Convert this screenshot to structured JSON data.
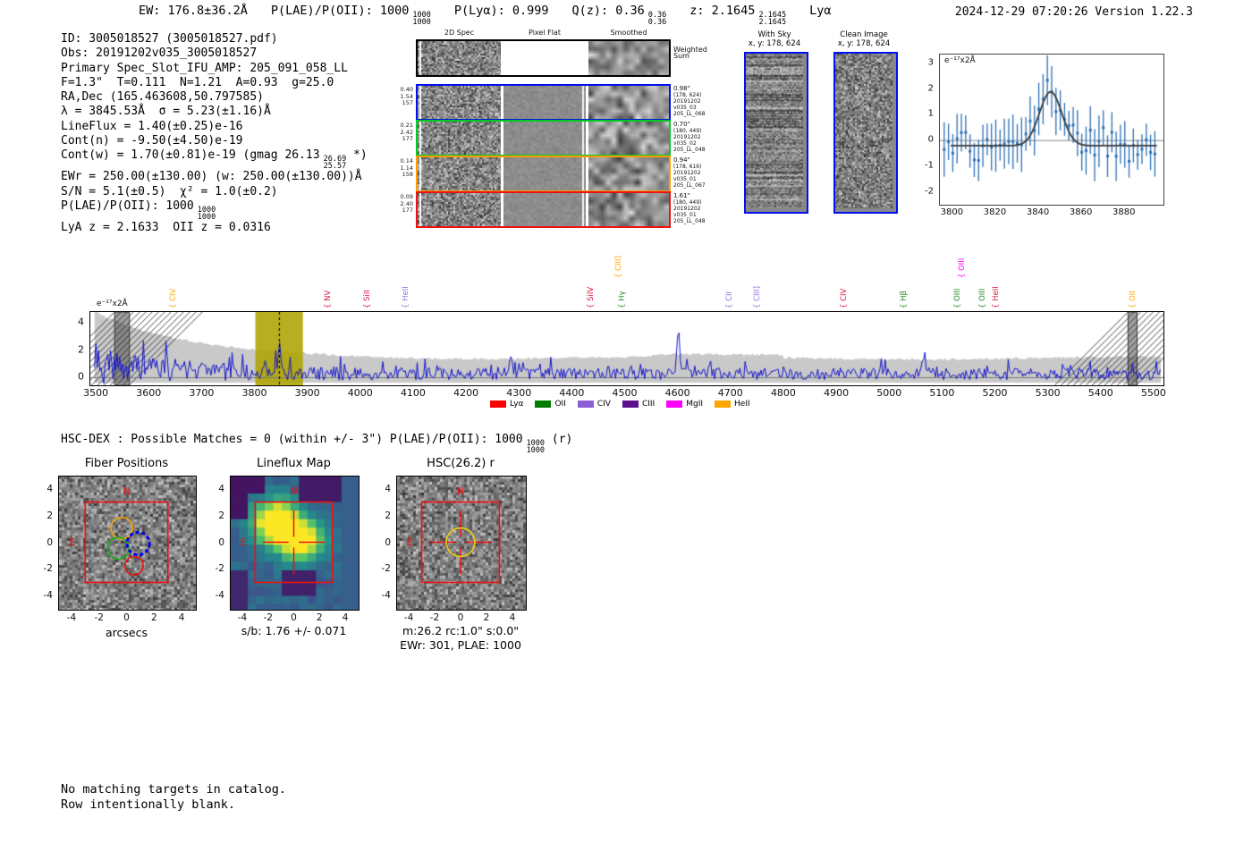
{
  "header": {
    "tokens": [
      {
        "text": "EW: 176.8±36.2Å"
      },
      {
        "text": "P(LAE)/P(OII): 1000",
        "sup": "1000",
        "sub": "1000"
      },
      {
        "text": "P(Lyα): 0.999"
      },
      {
        "text": "Q(z): 0.36",
        "sup": "0.36",
        "sub": "0.36"
      },
      {
        "text": "z: 2.1645",
        "sup": "2.1645",
        "sub": "2.1645"
      },
      {
        "text": "Lyα"
      }
    ],
    "datetime_version": "2024-12-29 07:20:26  Version 1.22.3"
  },
  "info": {
    "lines": [
      {
        "text": "ID: 3005018527 (3005018527.pdf)"
      },
      {
        "text": "Obs: 20191202v035_3005018527"
      },
      {
        "text": "Primary Spec_Slot_IFU_AMP: 205_091_058_LL"
      },
      {
        "text": "F=1.3\"  T=0.111  N=1.21  A=0.93  g=25.0"
      },
      {
        "text": "RA,Dec (165.463608,50.797585)"
      },
      {
        "text": "λ = 3845.53Å  σ = 5.23(±1.16)Å"
      },
      {
        "text": "LineFlux = 1.40(±0.25)e-16"
      },
      {
        "text": "Cont(n) = -9.50(±4.50)e-19"
      },
      {
        "text": "Cont(w) = 1.70(±0.81)e-19 (gmag 26.13",
        "sup": "26.69",
        "sub": "25.57",
        "post": " *)"
      },
      {
        "text": "EWr = 250.00(±130.00) (w: 250.00(±130.00))Å"
      },
      {
        "text": "S/N = 5.1(±0.5)  χ² = 1.0(±0.2)"
      },
      {
        "text": "P(LAE)/P(OII): 1000",
        "sup": "1000",
        "sub": "1000"
      },
      {
        "text": "LyA z = 2.1633  OII z = 0.0316"
      }
    ]
  },
  "twod": {
    "column_titles": [
      "2D Spec",
      "Pixel Flat",
      "Smoothed"
    ],
    "rows": [
      {
        "border": "#000000",
        "left": [],
        "right": [
          "Weighted",
          "Sum"
        ]
      },
      {
        "border": "#0010ee",
        "left": [
          "0.40",
          "1.54",
          "157"
        ],
        "right": [
          "0.98\"",
          "(178, 624)",
          "20191202",
          "v035_03",
          "205_LL_068"
        ]
      },
      {
        "border": "#00cc22",
        "left": [
          "0.21",
          "2.42",
          "177"
        ],
        "right": [
          "0.70\"",
          "(180, 449)",
          "20191202",
          "v035_02",
          "205_LL_048"
        ]
      },
      {
        "border": "#ff9d00",
        "left": [
          "0.14",
          "1.14",
          "158"
        ],
        "right": [
          "0.94\"",
          "(178, 616)",
          "20191202",
          "v035_01",
          "205_LL_067"
        ]
      },
      {
        "border": "#ee1111",
        "left": [
          "0.09",
          "2.40",
          "177"
        ],
        "right": [
          "1.61\"",
          "(180, 449)",
          "20191202",
          "v035_01",
          "205_LL_048"
        ]
      }
    ]
  },
  "cutouts": [
    {
      "title": "With Sky",
      "xy": "x, y: 178, 624"
    },
    {
      "title": "Clean Image",
      "xy": "x, y: 178, 624"
    }
  ],
  "hscdex": {
    "text": "HSC-DEX : Possible Matches = 0 (within +/- 3\")  P(LAE)/P(OII): 1000",
    "sup": "1000",
    "sub": "1000",
    "post": " (r)"
  },
  "footer": {
    "lines": [
      "No matching targets in catalog.",
      "Row intentionally blank."
    ]
  },
  "chart_data": [
    {
      "id": "zoom_spectrum",
      "type": "scatter",
      "annotation": "e⁻¹⁷x2Å",
      "xticks": [
        3800,
        3820,
        3840,
        3860,
        3880
      ],
      "yticks": [
        3,
        2,
        1,
        0,
        -1,
        -2
      ],
      "xlim": [
        3794,
        3898
      ],
      "ylim": [
        -2.5,
        3.35
      ],
      "marker_color": "#2d6fb5",
      "fit_color": "#3a3a3a",
      "fit": {
        "shape": "gaussian",
        "center": 3845.5,
        "sigma": 5.2,
        "amplitude": 2.1,
        "baseline": -0.2
      },
      "description": "Blue errorbar points about 0 with Gaussian fit peaking ~1.9 at 3845"
    },
    {
      "id": "full_spectrum",
      "type": "line",
      "annotation": "e⁻¹⁷x2Å",
      "xticks": [
        3500,
        3600,
        3700,
        3800,
        3900,
        4000,
        4100,
        4200,
        4300,
        4400,
        4500,
        4600,
        4700,
        4800,
        4900,
        5000,
        5100,
        5200,
        5300,
        5400,
        5500
      ],
      "yticks": [
        0,
        2,
        4
      ],
      "xlim": [
        3488,
        5517
      ],
      "ylim": [
        -0.55,
        4.75
      ],
      "spectrum_color": "#1414cc",
      "noise_envelope_color": "#c9c9c9",
      "emission_band": {
        "x0": 3800,
        "x1": 3890,
        "color": "rgba(173,164,0,0.88)",
        "line_at": 3845.5
      },
      "masked_bands": [
        [
          3534,
          3562
        ],
        [
          5450,
          5467
        ]
      ],
      "spikes": [
        [
          3845.5,
          1.7
        ],
        [
          4283,
          1.5
        ],
        [
          4600,
          2.7
        ],
        [
          5065,
          1.2
        ]
      ],
      "line_markers": [
        {
          "label": "CIV",
          "x": 3632,
          "color": "#ffa500",
          "elevated": false
        },
        {
          "label": "NV",
          "x": 3924,
          "color": "#dc143c",
          "elevated": false
        },
        {
          "label": "SiII",
          "x": 3999,
          "color": "#dc143c",
          "elevated": false
        },
        {
          "label": "HeII",
          "x": 4071,
          "color": "#9370db",
          "elevated": false
        },
        {
          "label": "SiIV",
          "x": 4421,
          "color": "#dc143c",
          "elevated": false
        },
        {
          "label": "CIII]",
          "x": 4474,
          "color": "#ffa500",
          "elevated": true
        },
        {
          "label": "Hγ",
          "x": 4480,
          "color": "#228b22",
          "elevated": false
        },
        {
          "label": "CII",
          "x": 4683,
          "color": "#9370db",
          "elevated": false
        },
        {
          "label": "CIII]",
          "x": 4736,
          "color": "#9370db",
          "elevated": false
        },
        {
          "label": "CIV",
          "x": 4900,
          "color": "#dc143c",
          "elevated": false
        },
        {
          "label": "Hβ",
          "x": 5013,
          "color": "#228b22",
          "elevated": false
        },
        {
          "label": "OIII",
          "x": 5115,
          "color": "#228b22",
          "elevated": false
        },
        {
          "label": "OIII",
          "x": 5123,
          "color": "#ff00ff",
          "elevated": true
        },
        {
          "label": "OIII",
          "x": 5162,
          "color": "#228b22",
          "elevated": false
        },
        {
          "label": "HeII",
          "x": 5187,
          "color": "#dc143c",
          "elevated": false
        },
        {
          "label": "OII",
          "x": 5446,
          "color": "#ffa500",
          "elevated": false
        }
      ],
      "legend": [
        {
          "label": "Lyα",
          "color": "#ff0000"
        },
        {
          "label": "OII",
          "color": "#007d00"
        },
        {
          "label": "CIV",
          "color": "#8b5fd6"
        },
        {
          "label": "CIII",
          "color": "#5d0f8e"
        },
        {
          "label": "MgII",
          "color": "#ff00ff"
        },
        {
          "label": "HeII",
          "color": "#ffa500"
        }
      ]
    },
    {
      "id": "fiber_positions",
      "type": "image",
      "title": "Fiber Positions",
      "xticks": [
        -4,
        -2,
        0,
        2,
        4
      ],
      "yticks": [
        -4,
        -2,
        0,
        2,
        4
      ],
      "xlabel": "arcsecs",
      "compass": {
        "n": "N",
        "e": "E",
        "color": "#ee1111"
      },
      "aperture_box": [
        -3,
        3
      ],
      "fibers": [
        {
          "color": "#ffa500",
          "x": -0.35,
          "y": 1.05,
          "r": 0.78,
          "style": "solid"
        },
        {
          "color": "#11b011",
          "x": -0.6,
          "y": -0.45,
          "r": 0.78,
          "style": "solid"
        },
        {
          "color": "#0000ee",
          "x": 0.85,
          "y": -0.1,
          "r": 0.82,
          "style": "dashed-bold"
        },
        {
          "color": "#ee1111",
          "x": 0.55,
          "y": -1.75,
          "r": 0.66,
          "style": "solid"
        }
      ]
    },
    {
      "id": "lineflux_map",
      "type": "heatmap",
      "title": "Lineflux Map",
      "xticks": [
        -4,
        -2,
        0,
        2,
        4
      ],
      "yticks": [
        -4,
        -2,
        0,
        2,
        4
      ],
      "xlabel": "s/b: 1.76 +/- 0.071",
      "colormap": "viridis",
      "compass": {
        "n": "N",
        "e": "E",
        "color": "#ee1111"
      },
      "aperture_box": [
        -3,
        3
      ],
      "peaks": [
        {
          "x": -1.5,
          "y": 1.4,
          "amp": 1.0
        },
        {
          "x": 0.55,
          "y": 0.0,
          "amp": 0.8
        }
      ],
      "crosshair": {
        "x": 0,
        "y": 0,
        "color": "#ee1111"
      }
    },
    {
      "id": "hsc_r",
      "type": "image",
      "title": "HSC(26.2) r",
      "xticks": [
        -4,
        -2,
        0,
        2,
        4
      ],
      "yticks": [
        -4,
        -2,
        0,
        2,
        4
      ],
      "xlabel": "m:26.2 rc:1.0\"  s:0.0\"",
      "xlabel2": "EWr: 301, PLAE: 1000",
      "compass": {
        "n": "N",
        "e": "E",
        "color": "#ee1111"
      },
      "aperture_box": [
        -3,
        3
      ],
      "aperture_circle": {
        "x": 0,
        "y": 0,
        "r": 1.1,
        "color": "#e6c619"
      },
      "crosshair": {
        "x": 0,
        "y": 0,
        "color": "#ee1111"
      }
    }
  ]
}
